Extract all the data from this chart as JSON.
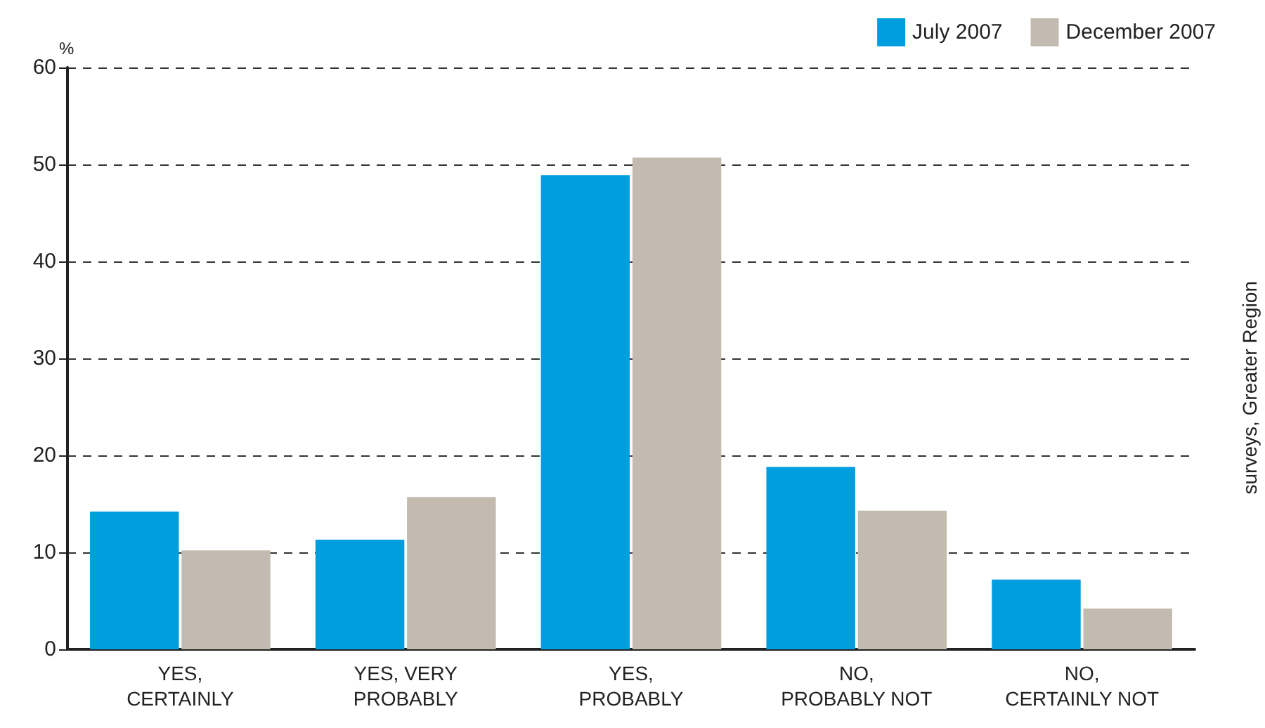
{
  "chart_data": {
    "type": "bar",
    "ylabel": "%",
    "categories": [
      "YES,\nCERTAINLY",
      "YES, VERY\nPROBABLY",
      "YES,\nPROBABLY",
      "NO,\nPROBABLY NOT",
      "NO,\nCERTAINLY NOT"
    ],
    "series": [
      {
        "name": "July 2007",
        "color": "#009ddf",
        "values": [
          14.2,
          11.3,
          48.9,
          18.8,
          7.2
        ]
      },
      {
        "name": "December 2007",
        "color": "#c3bbb0",
        "values": [
          10.2,
          15.7,
          50.7,
          14.3,
          4.2
        ]
      }
    ],
    "ylim": [
      0,
      60
    ],
    "yticks": [
      0,
      10,
      20,
      30,
      40,
      50,
      60
    ],
    "grid": "y",
    "legend": "top right",
    "annotations": [
      "surveys, Greater Region"
    ]
  }
}
